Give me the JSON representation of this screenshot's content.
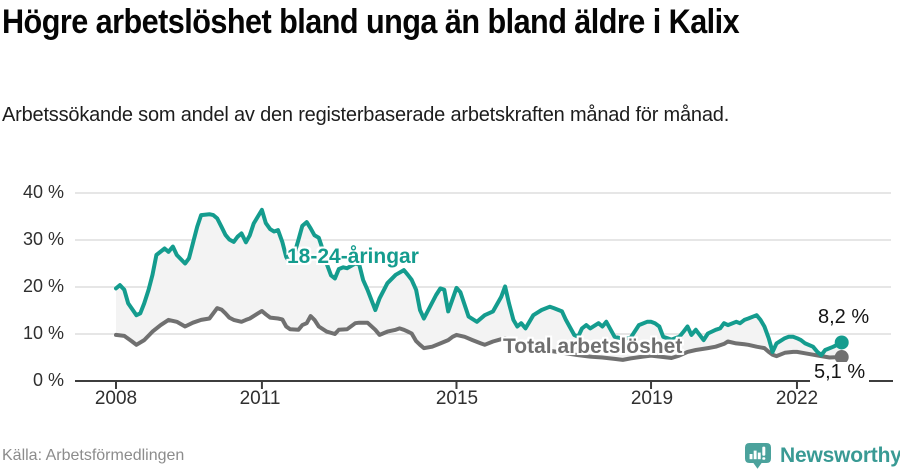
{
  "header": {
    "title": "Högre arbetslöshet bland unga än bland äldre i Kalix",
    "subtitle": "Arbetssökande som andel av den registerbaserade arbetskraften månad för månad."
  },
  "footer": {
    "source": "Källa: Arbetsförmedlingen",
    "brand_name": "Newsworthy",
    "brand_icon": "speech-bubble-bar-chart-icon"
  },
  "colors": {
    "youth_line": "#149c8e",
    "total_line": "#707070",
    "band_fill": "#f3f3f3",
    "grid": "#d8d8d8",
    "axis": "#3d3d3d",
    "end_label_text": "#141414",
    "brand_teal": "#399a94",
    "brand_icon_fill": "#4ba29c"
  },
  "chart_data": {
    "type": "line",
    "title": "Högre arbetslöshet bland unga än bland äldre i Kalix",
    "xlabel": "",
    "ylabel": "Arbetssökande som andel av den registerbaserade arbetskraften",
    "grid": true,
    "band_between_series": true,
    "x_axis": {
      "tick_values": [
        2008,
        2011,
        2015,
        2019,
        2022
      ],
      "tick_labels": [
        "2008",
        "2011",
        "2015",
        "2019",
        "2022"
      ],
      "range": [
        2008,
        2022.92
      ]
    },
    "y_axis": {
      "tick_values": [
        40,
        30,
        20,
        10,
        0
      ],
      "tick_labels": [
        "40 %",
        "30 %",
        "20 %",
        "10 %",
        "0 %"
      ],
      "range": [
        0,
        40
      ],
      "unit": "%"
    },
    "series": [
      {
        "name": "18-24-åringar",
        "color": "#149c8e",
        "end_label": "8,2 %",
        "end_value": 8.2,
        "points": [
          [
            2008.0,
            19.7
          ],
          [
            2008.08,
            20.4
          ],
          [
            2008.17,
            19.4
          ],
          [
            2008.25,
            16.5
          ],
          [
            2008.42,
            14.0
          ],
          [
            2008.5,
            14.4
          ],
          [
            2008.58,
            16.5
          ],
          [
            2008.67,
            19.4
          ],
          [
            2008.75,
            22.6
          ],
          [
            2008.83,
            26.8
          ],
          [
            2009.0,
            28.2
          ],
          [
            2009.08,
            27.5
          ],
          [
            2009.17,
            28.6
          ],
          [
            2009.25,
            26.8
          ],
          [
            2009.42,
            25.0
          ],
          [
            2009.5,
            26.1
          ],
          [
            2009.58,
            29.3
          ],
          [
            2009.67,
            32.8
          ],
          [
            2009.75,
            35.3
          ],
          [
            2009.92,
            35.5
          ],
          [
            2010.0,
            35.3
          ],
          [
            2010.08,
            34.6
          ],
          [
            2010.17,
            32.8
          ],
          [
            2010.25,
            31.1
          ],
          [
            2010.33,
            30.1
          ],
          [
            2010.42,
            29.6
          ],
          [
            2010.5,
            30.7
          ],
          [
            2010.58,
            31.4
          ],
          [
            2010.67,
            29.5
          ],
          [
            2010.75,
            31.0
          ],
          [
            2010.83,
            33.5
          ],
          [
            2011.0,
            36.4
          ],
          [
            2011.08,
            33.6
          ],
          [
            2011.17,
            32.3
          ],
          [
            2011.25,
            31.8
          ],
          [
            2011.33,
            32.1
          ],
          [
            2011.42,
            29.6
          ],
          [
            2011.5,
            26.4
          ],
          [
            2011.58,
            25.1
          ],
          [
            2011.67,
            27.2
          ],
          [
            2011.75,
            30.0
          ],
          [
            2011.83,
            33.0
          ],
          [
            2011.92,
            33.8
          ],
          [
            2012.0,
            32.5
          ],
          [
            2012.08,
            31.0
          ],
          [
            2012.17,
            30.5
          ],
          [
            2012.25,
            28.0
          ],
          [
            2012.33,
            25.0
          ],
          [
            2012.42,
            22.5
          ],
          [
            2012.5,
            21.8
          ],
          [
            2012.58,
            23.8
          ],
          [
            2012.67,
            24.2
          ],
          [
            2012.75,
            24.0
          ],
          [
            2012.92,
            25.0
          ],
          [
            2013.0,
            24.8
          ],
          [
            2013.08,
            21.5
          ],
          [
            2013.17,
            19.4
          ],
          [
            2013.33,
            15.1
          ],
          [
            2013.42,
            17.6
          ],
          [
            2013.58,
            20.8
          ],
          [
            2013.75,
            22.6
          ],
          [
            2013.92,
            23.6
          ],
          [
            2014.0,
            22.6
          ],
          [
            2014.08,
            21.5
          ],
          [
            2014.17,
            19.4
          ],
          [
            2014.25,
            15.1
          ],
          [
            2014.33,
            13.3
          ],
          [
            2014.42,
            15.1
          ],
          [
            2014.58,
            18.3
          ],
          [
            2014.67,
            19.7
          ],
          [
            2014.75,
            19.4
          ],
          [
            2014.83,
            14.8
          ],
          [
            2015.0,
            19.8
          ],
          [
            2015.08,
            18.9
          ],
          [
            2015.25,
            13.7
          ],
          [
            2015.42,
            12.6
          ],
          [
            2015.58,
            14.0
          ],
          [
            2015.75,
            14.8
          ],
          [
            2015.92,
            17.9
          ],
          [
            2016.0,
            20.1
          ],
          [
            2016.08,
            16.5
          ],
          [
            2016.17,
            13.0
          ],
          [
            2016.25,
            11.6
          ],
          [
            2016.33,
            12.3
          ],
          [
            2016.42,
            11.2
          ],
          [
            2016.5,
            12.6
          ],
          [
            2016.58,
            14.0
          ],
          [
            2016.75,
            15.1
          ],
          [
            2016.92,
            15.8
          ],
          [
            2017.0,
            15.5
          ],
          [
            2017.17,
            14.8
          ],
          [
            2017.25,
            13.0
          ],
          [
            2017.42,
            9.8
          ],
          [
            2017.5,
            9.4
          ],
          [
            2017.58,
            11.2
          ],
          [
            2017.67,
            11.9
          ],
          [
            2017.75,
            11.2
          ],
          [
            2017.92,
            12.3
          ],
          [
            2018.0,
            11.6
          ],
          [
            2018.08,
            12.6
          ],
          [
            2018.25,
            9.4
          ],
          [
            2018.42,
            9.0
          ],
          [
            2018.58,
            9.2
          ],
          [
            2018.75,
            11.9
          ],
          [
            2018.92,
            12.6
          ],
          [
            2019.0,
            12.6
          ],
          [
            2019.08,
            12.3
          ],
          [
            2019.17,
            11.6
          ],
          [
            2019.25,
            9.4
          ],
          [
            2019.42,
            8.8
          ],
          [
            2019.58,
            9.4
          ],
          [
            2019.67,
            10.5
          ],
          [
            2019.75,
            11.6
          ],
          [
            2019.83,
            9.8
          ],
          [
            2019.92,
            10.9
          ],
          [
            2020.08,
            8.7
          ],
          [
            2020.17,
            10.1
          ],
          [
            2020.33,
            10.9
          ],
          [
            2020.42,
            11.2
          ],
          [
            2020.5,
            12.3
          ],
          [
            2020.58,
            11.9
          ],
          [
            2020.75,
            12.6
          ],
          [
            2020.83,
            12.3
          ],
          [
            2020.92,
            13.0
          ],
          [
            2021.0,
            13.3
          ],
          [
            2021.17,
            14.0
          ],
          [
            2021.25,
            13.0
          ],
          [
            2021.33,
            11.6
          ],
          [
            2021.42,
            9.1
          ],
          [
            2021.5,
            6.2
          ],
          [
            2021.58,
            8.0
          ],
          [
            2021.75,
            9.1
          ],
          [
            2021.83,
            9.4
          ],
          [
            2021.92,
            9.4
          ],
          [
            2022.0,
            9.1
          ],
          [
            2022.08,
            8.7
          ],
          [
            2022.17,
            8.0
          ],
          [
            2022.33,
            7.3
          ],
          [
            2022.42,
            6.2
          ],
          [
            2022.5,
            5.5
          ],
          [
            2022.58,
            6.6
          ],
          [
            2022.75,
            7.3
          ],
          [
            2022.92,
            8.2
          ]
        ]
      },
      {
        "name": "Total arbetslöshet",
        "color": "#707070",
        "end_label": "5,1 %",
        "end_value": 5.1,
        "points": [
          [
            2008.0,
            9.8
          ],
          [
            2008.17,
            9.6
          ],
          [
            2008.33,
            8.4
          ],
          [
            2008.42,
            7.7
          ],
          [
            2008.58,
            8.7
          ],
          [
            2008.75,
            10.5
          ],
          [
            2008.92,
            11.9
          ],
          [
            2009.08,
            13.0
          ],
          [
            2009.25,
            12.6
          ],
          [
            2009.42,
            11.6
          ],
          [
            2009.58,
            12.4
          ],
          [
            2009.75,
            13.0
          ],
          [
            2009.92,
            13.3
          ],
          [
            2010.0,
            14.4
          ],
          [
            2010.08,
            15.5
          ],
          [
            2010.17,
            15.2
          ],
          [
            2010.25,
            14.4
          ],
          [
            2010.33,
            13.5
          ],
          [
            2010.42,
            13.0
          ],
          [
            2010.58,
            12.6
          ],
          [
            2010.67,
            13.0
          ],
          [
            2010.75,
            13.3
          ],
          [
            2010.92,
            14.4
          ],
          [
            2011.0,
            14.9
          ],
          [
            2011.08,
            14.2
          ],
          [
            2011.17,
            13.5
          ],
          [
            2011.33,
            13.3
          ],
          [
            2011.42,
            13.1
          ],
          [
            2011.5,
            11.6
          ],
          [
            2011.58,
            11.0
          ],
          [
            2011.75,
            10.9
          ],
          [
            2011.83,
            11.9
          ],
          [
            2011.92,
            12.3
          ],
          [
            2012.0,
            13.8
          ],
          [
            2012.08,
            13.0
          ],
          [
            2012.17,
            11.6
          ],
          [
            2012.33,
            10.5
          ],
          [
            2012.5,
            10.0
          ],
          [
            2012.58,
            10.9
          ],
          [
            2012.75,
            11.0
          ],
          [
            2012.92,
            12.3
          ],
          [
            2013.0,
            12.4
          ],
          [
            2013.17,
            12.4
          ],
          [
            2013.33,
            10.9
          ],
          [
            2013.42,
            9.8
          ],
          [
            2013.58,
            10.5
          ],
          [
            2013.75,
            10.9
          ],
          [
            2013.83,
            11.2
          ],
          [
            2013.92,
            10.9
          ],
          [
            2014.0,
            10.5
          ],
          [
            2014.08,
            10.1
          ],
          [
            2014.17,
            8.5
          ],
          [
            2014.25,
            7.7
          ],
          [
            2014.33,
            7.0
          ],
          [
            2014.5,
            7.3
          ],
          [
            2014.67,
            8.0
          ],
          [
            2014.83,
            8.7
          ],
          [
            2014.92,
            9.4
          ],
          [
            2015.0,
            9.8
          ],
          [
            2015.17,
            9.4
          ],
          [
            2015.33,
            8.7
          ],
          [
            2015.5,
            8.0
          ],
          [
            2015.58,
            7.7
          ],
          [
            2015.75,
            8.4
          ],
          [
            2015.92,
            8.9
          ],
          [
            2016.0,
            9.1
          ],
          [
            2016.17,
            8.7
          ],
          [
            2016.33,
            8.2
          ],
          [
            2016.5,
            7.6
          ],
          [
            2016.67,
            7.1
          ],
          [
            2016.83,
            6.6
          ],
          [
            2017.0,
            6.3
          ],
          [
            2017.25,
            5.9
          ],
          [
            2017.5,
            5.5
          ],
          [
            2017.75,
            5.2
          ],
          [
            2018.0,
            5.0
          ],
          [
            2018.25,
            4.7
          ],
          [
            2018.42,
            4.5
          ],
          [
            2018.58,
            4.8
          ],
          [
            2018.83,
            5.2
          ],
          [
            2019.0,
            5.4
          ],
          [
            2019.25,
            5.1
          ],
          [
            2019.42,
            4.9
          ],
          [
            2019.58,
            5.4
          ],
          [
            2019.75,
            6.2
          ],
          [
            2019.92,
            6.6
          ],
          [
            2020.17,
            7.0
          ],
          [
            2020.33,
            7.3
          ],
          [
            2020.5,
            7.9
          ],
          [
            2020.58,
            8.4
          ],
          [
            2020.75,
            8.0
          ],
          [
            2020.92,
            7.8
          ],
          [
            2021.0,
            7.7
          ],
          [
            2021.17,
            7.3
          ],
          [
            2021.33,
            7.0
          ],
          [
            2021.42,
            6.2
          ],
          [
            2021.5,
            5.6
          ],
          [
            2021.58,
            5.3
          ],
          [
            2021.75,
            6.0
          ],
          [
            2021.92,
            6.2
          ],
          [
            2022.0,
            6.2
          ],
          [
            2022.17,
            5.9
          ],
          [
            2022.33,
            5.6
          ],
          [
            2022.5,
            5.3
          ],
          [
            2022.67,
            5.0
          ],
          [
            2022.92,
            5.1
          ]
        ]
      }
    ]
  }
}
